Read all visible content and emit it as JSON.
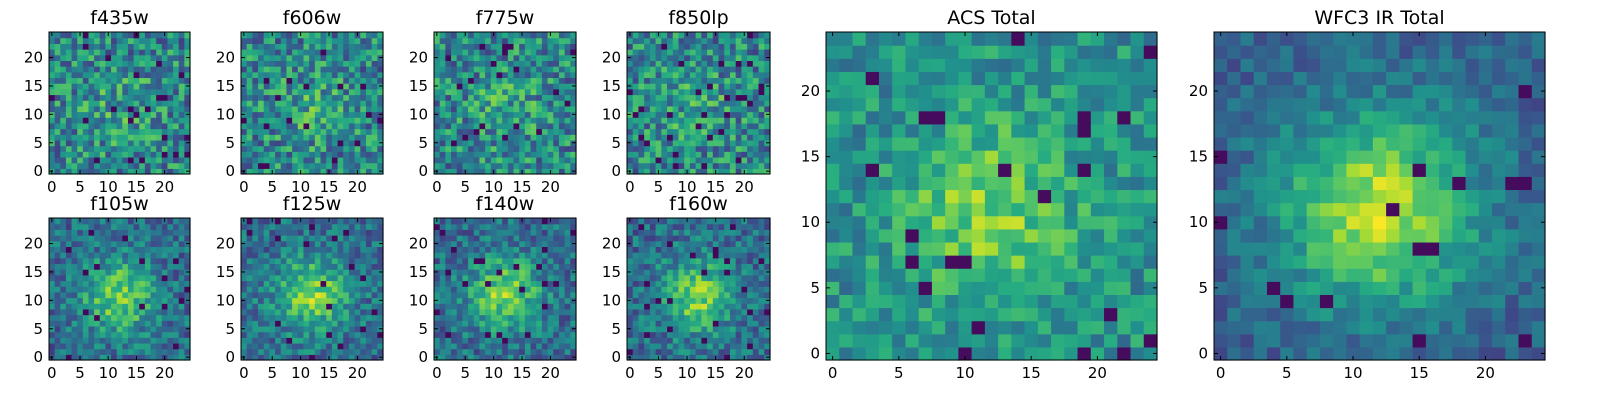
{
  "chart_data": [
    {
      "type": "heatmap",
      "title": "f435w",
      "xticks": [
        "0",
        "5",
        "10",
        "15",
        "20"
      ],
      "yticks": [
        "0",
        "5",
        "10",
        "15",
        "20"
      ],
      "xlim": [
        -0.5,
        24.5
      ],
      "ylim": [
        -0.5,
        24.5
      ],
      "grid_size": 25,
      "colormap": "viridis",
      "pattern": "noisy"
    },
    {
      "type": "heatmap",
      "title": "f606w",
      "xticks": [
        "0",
        "5",
        "10",
        "15",
        "20"
      ],
      "yticks": [
        "0",
        "5",
        "10",
        "15",
        "20"
      ],
      "xlim": [
        -0.5,
        24.5
      ],
      "ylim": [
        -0.5,
        24.5
      ],
      "grid_size": 25,
      "colormap": "viridis",
      "pattern": "noisy"
    },
    {
      "type": "heatmap",
      "title": "f775w",
      "xticks": [
        "0",
        "5",
        "10",
        "15",
        "20"
      ],
      "yticks": [
        "0",
        "5",
        "10",
        "15",
        "20"
      ],
      "xlim": [
        -0.5,
        24.5
      ],
      "ylim": [
        -0.5,
        24.5
      ],
      "grid_size": 25,
      "colormap": "viridis",
      "pattern": "noisy"
    },
    {
      "type": "heatmap",
      "title": "f850lp",
      "xticks": [
        "0",
        "5",
        "10",
        "15",
        "20"
      ],
      "yticks": [
        "0",
        "5",
        "10",
        "15",
        "20"
      ],
      "xlim": [
        -0.5,
        24.5
      ],
      "ylim": [
        -0.5,
        24.5
      ],
      "grid_size": 25,
      "colormap": "viridis",
      "pattern": "noisy"
    },
    {
      "type": "heatmap",
      "title": "f105w",
      "xticks": [
        "0",
        "5",
        "10",
        "15",
        "20"
      ],
      "yticks": [
        "0",
        "5",
        "10",
        "15",
        "20"
      ],
      "xlim": [
        -0.5,
        24.5
      ],
      "ylim": [
        -0.5,
        24.5
      ],
      "grid_size": 25,
      "colormap": "viridis",
      "pattern": "source"
    },
    {
      "type": "heatmap",
      "title": "f125w",
      "xticks": [
        "0",
        "5",
        "10",
        "15",
        "20"
      ],
      "yticks": [
        "0",
        "5",
        "10",
        "15",
        "20"
      ],
      "xlim": [
        -0.5,
        24.5
      ],
      "ylim": [
        -0.5,
        24.5
      ],
      "grid_size": 25,
      "colormap": "viridis",
      "pattern": "source"
    },
    {
      "type": "heatmap",
      "title": "f140w",
      "xticks": [
        "0",
        "5",
        "10",
        "15",
        "20"
      ],
      "yticks": [
        "0",
        "5",
        "10",
        "15",
        "20"
      ],
      "xlim": [
        -0.5,
        24.5
      ],
      "ylim": [
        -0.5,
        24.5
      ],
      "grid_size": 25,
      "colormap": "viridis",
      "pattern": "source"
    },
    {
      "type": "heatmap",
      "title": "f160w",
      "xticks": [
        "0",
        "5",
        "10",
        "15",
        "20"
      ],
      "yticks": [
        "0",
        "5",
        "10",
        "15",
        "20"
      ],
      "xlim": [
        -0.5,
        24.5
      ],
      "ylim": [
        -0.5,
        24.5
      ],
      "grid_size": 25,
      "colormap": "viridis",
      "pattern": "source"
    },
    {
      "type": "heatmap",
      "title": "ACS Total",
      "xticks": [
        "0",
        "5",
        "10",
        "15",
        "20"
      ],
      "yticks": [
        "0",
        "5",
        "10",
        "15",
        "20"
      ],
      "xlim": [
        -0.5,
        24.5
      ],
      "ylim": [
        -0.5,
        24.5
      ],
      "grid_size": 25,
      "colormap": "viridis",
      "pattern": "weak-source"
    },
    {
      "type": "heatmap",
      "title": "WFC3 IR Total",
      "xticks": [
        "0",
        "5",
        "10",
        "15",
        "20"
      ],
      "yticks": [
        "0",
        "5",
        "10",
        "15",
        "20"
      ],
      "xlim": [
        -0.5,
        24.5
      ],
      "ylim": [
        -0.5,
        24.5
      ],
      "grid_size": 25,
      "colormap": "viridis",
      "pattern": "strong-source"
    }
  ]
}
